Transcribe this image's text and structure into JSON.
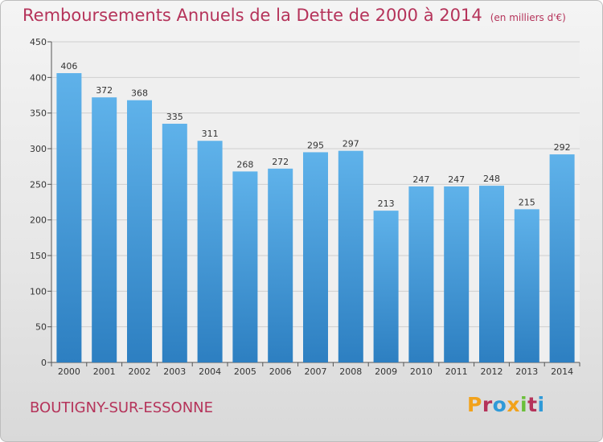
{
  "colors": {
    "title": "#b5335a",
    "bar_top": "#5fb2ea",
    "bar_bottom": "#2d7fc1",
    "grid": "#cfcfcf",
    "logo": [
      "#f2a21b",
      "#b5335a",
      "#2f9ad8",
      "#f2a21b",
      "#6bbf3a",
      "#b5335a",
      "#2f9ad8"
    ]
  },
  "header": {
    "title": "Remboursements Annuels de la Dette de 2000 à 2014",
    "unit_note": "(en milliers d'€)"
  },
  "footer": {
    "city": "BOUTIGNY-SUR-ESSONNE",
    "logo_text": "Proxiti"
  },
  "chart_data": {
    "type": "bar",
    "title": "Remboursements Annuels de la Dette de 2000 à 2014",
    "xlabel": "",
    "ylabel": "",
    "ylim": [
      0,
      450
    ],
    "yticks": [
      0,
      50,
      100,
      150,
      200,
      250,
      300,
      350,
      400,
      450
    ],
    "grid": true,
    "categories": [
      "2000",
      "2001",
      "2002",
      "2003",
      "2004",
      "2005",
      "2006",
      "2007",
      "2008",
      "2009",
      "2010",
      "2011",
      "2012",
      "2013",
      "2014"
    ],
    "values": [
      406,
      372,
      368,
      335,
      311,
      268,
      272,
      295,
      297,
      213,
      247,
      247,
      248,
      215,
      292
    ]
  }
}
